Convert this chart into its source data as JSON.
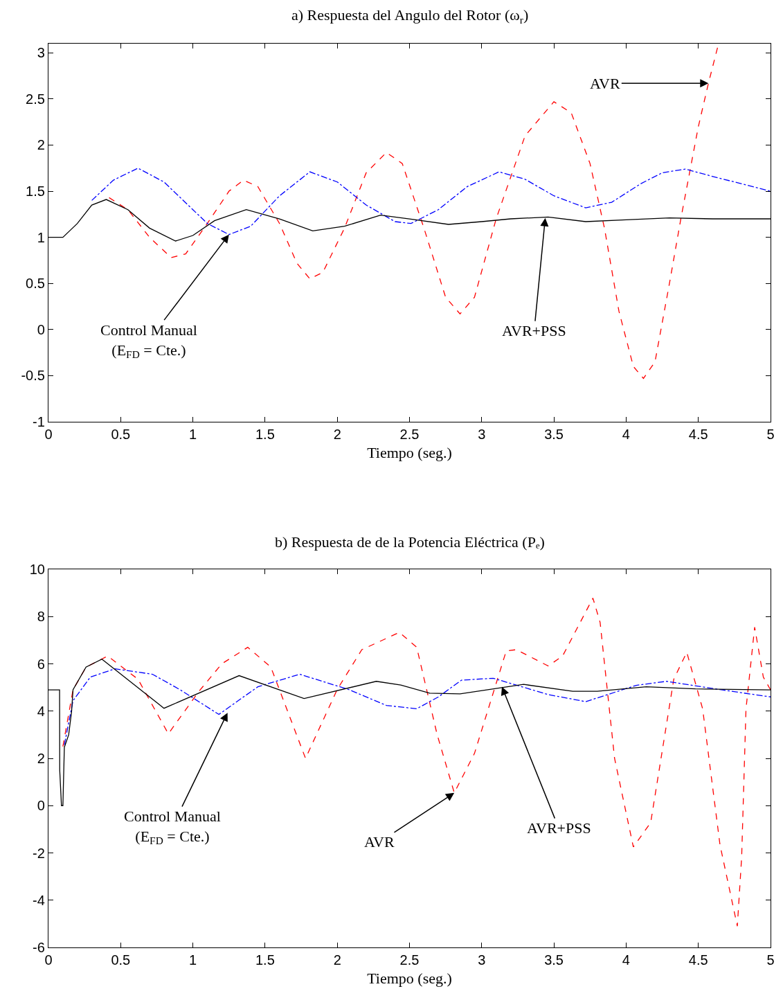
{
  "chart_data": [
    {
      "type": "line",
      "title": "a) Respuesta del Angulo del Rotor (ω$_{r}$)",
      "xlabel": "Tiempo (seg.)",
      "xlim": [
        0,
        5
      ],
      "xticks": [
        0,
        0.5,
        1,
        1.5,
        2,
        2.5,
        3,
        3.5,
        4,
        4.5,
        5
      ],
      "ylim": [
        -1,
        3.1
      ],
      "yticks": [
        -1,
        -0.5,
        0,
        0.5,
        1,
        1.5,
        2,
        2.5,
        3
      ],
      "series": [
        {
          "color": "#ff0000",
          "line_style": "dashed",
          "x": [
            0.42,
            0.55,
            0.7,
            0.85,
            0.95,
            1.1,
            1.25,
            1.35,
            1.45,
            1.6,
            1.72,
            1.81,
            1.9,
            2.05,
            2.2,
            2.34,
            2.45,
            2.6,
            2.75,
            2.85,
            2.95,
            3.1,
            3.3,
            3.5,
            3.62,
            3.75,
            3.85,
            3.95,
            4.05,
            4.12,
            4.2,
            4.3,
            4.38,
            4.5,
            4.57,
            4.64
          ],
          "values": [
            1.43,
            1.3,
            1.0,
            0.78,
            0.82,
            1.15,
            1.5,
            1.62,
            1.55,
            1.15,
            0.72,
            0.55,
            0.62,
            1.1,
            1.7,
            1.92,
            1.8,
            1.1,
            0.35,
            0.17,
            0.35,
            1.2,
            2.1,
            2.47,
            2.35,
            1.8,
            1.1,
            0.2,
            -0.4,
            -0.53,
            -0.35,
            0.5,
            1.21,
            2.2,
            2.67,
            3.1
          ]
        },
        {
          "color": "#0000ff",
          "line_style": "dashdot",
          "x": [
            0.3,
            0.45,
            0.62,
            0.8,
            1.0,
            1.1,
            1.25,
            1.4,
            1.6,
            1.81,
            2.0,
            2.2,
            2.4,
            2.51,
            2.7,
            2.9,
            3.12,
            3.3,
            3.5,
            3.72,
            3.9,
            4.1,
            4.25,
            4.41,
            4.6,
            4.8,
            5.0
          ],
          "values": [
            1.4,
            1.62,
            1.75,
            1.6,
            1.3,
            1.15,
            1.03,
            1.12,
            1.45,
            1.71,
            1.6,
            1.35,
            1.17,
            1.15,
            1.3,
            1.55,
            1.71,
            1.63,
            1.45,
            1.32,
            1.38,
            1.58,
            1.7,
            1.74,
            1.66,
            1.58,
            1.5
          ]
        },
        {
          "color": "#000000",
          "line_style": "solid",
          "x": [
            0,
            0.1,
            0.2,
            0.3,
            0.4,
            0.55,
            0.7,
            0.88,
            1.0,
            1.15,
            1.37,
            1.6,
            1.83,
            2.05,
            2.3,
            2.5,
            2.77,
            3.0,
            3.2,
            3.46,
            3.72,
            4.0,
            4.3,
            4.6,
            5.0
          ],
          "values": [
            1.0,
            1.0,
            1.15,
            1.35,
            1.41,
            1.3,
            1.1,
            0.96,
            1.02,
            1.18,
            1.3,
            1.2,
            1.07,
            1.12,
            1.24,
            1.2,
            1.14,
            1.17,
            1.2,
            1.22,
            1.17,
            1.19,
            1.21,
            1.2,
            1.2
          ]
        }
      ],
      "annotations": [
        {
          "text": "Control Manual\n(E$_{FD}$ = Cte.)",
          "x": 1.25,
          "y": 1.03
        },
        {
          "text": "AVR+PSS",
          "x": 3.44,
          "y": 1.21
        },
        {
          "text": "AVR",
          "x": 4.57,
          "y": 2.67
        }
      ]
    },
    {
      "type": "line",
      "title": "b) Respuesta de de la Potencia Eléctrica (Pₑ)",
      "xlabel": "Tiempo (seg.)",
      "xlim": [
        0,
        5
      ],
      "xticks": [
        0,
        0.5,
        1,
        1.5,
        2,
        2.5,
        3,
        3.5,
        4,
        4.5,
        5
      ],
      "ylim": [
        -6,
        10
      ],
      "yticks": [
        -6,
        -4,
        -2,
        0,
        2,
        4,
        6,
        8,
        10
      ],
      "series": [
        {
          "color": "#ff0000",
          "line_style": "dashed",
          "x": [
            0.1,
            0.17,
            0.26,
            0.41,
            0.62,
            0.83,
            1.04,
            1.2,
            1.38,
            1.54,
            1.78,
            2.0,
            2.17,
            2.43,
            2.55,
            2.69,
            2.81,
            2.95,
            3.17,
            3.24,
            3.46,
            3.56,
            3.77,
            3.82,
            3.92,
            4.05,
            4.17,
            4.33,
            4.42,
            4.53,
            4.65,
            4.77,
            4.8,
            4.83,
            4.89,
            4.95,
            5.0
          ],
          "values": [
            2.5,
            4.9,
            5.86,
            6.33,
            5.35,
            3.04,
            4.82,
            6.0,
            6.7,
            5.86,
            2.0,
            4.92,
            6.6,
            7.33,
            6.7,
            3.04,
            0.54,
            2.21,
            6.55,
            6.6,
            5.91,
            6.33,
            8.78,
            7.75,
            2.0,
            -1.75,
            -0.72,
            5.35,
            6.49,
            4.09,
            -1.66,
            -5.1,
            -2.18,
            4.09,
            7.55,
            5.44,
            4.9
          ]
        },
        {
          "color": "#0000ff",
          "line_style": "dashdot",
          "x": [
            0.11,
            0.17,
            0.29,
            0.46,
            0.72,
            0.91,
            1.18,
            1.45,
            1.74,
            2.08,
            2.34,
            2.55,
            2.7,
            2.86,
            3.08,
            3.46,
            3.72,
            4.07,
            4.28,
            4.65,
            5.0
          ],
          "values": [
            2.57,
            4.44,
            5.44,
            5.79,
            5.56,
            4.91,
            3.86,
            5.03,
            5.56,
            4.91,
            4.24,
            4.1,
            4.6,
            5.31,
            5.39,
            4.7,
            4.4,
            5.09,
            5.26,
            4.91,
            4.6
          ]
        },
        {
          "color": "#000000",
          "line_style": "solid",
          "x": [
            0,
            0.077,
            0.078,
            0.09,
            0.1,
            0.11,
            0.14,
            0.16,
            0.17,
            0.26,
            0.37,
            0.8,
            1.32,
            1.77,
            2.27,
            2.44,
            2.64,
            2.85,
            3.29,
            3.63,
            3.8,
            4.14,
            4.48,
            5.0
          ],
          "values": [
            4.9,
            4.9,
            1.5,
            0.0,
            0.0,
            2.47,
            3.0,
            3.97,
            4.9,
            5.86,
            6.2,
            4.12,
            5.5,
            4.53,
            5.26,
            5.1,
            4.76,
            4.73,
            5.13,
            4.84,
            4.84,
            5.03,
            4.94,
            4.9
          ]
        }
      ],
      "annotations": [
        {
          "text": "Control Manual\n(E$_{FD}$ = Cte.)",
          "x": 1.24,
          "y": 3.93
        },
        {
          "text": "AVR",
          "x": 2.81,
          "y": 0.54
        },
        {
          "text": "AVR+PSS",
          "x": 3.14,
          "y": 5.03
        }
      ]
    }
  ]
}
